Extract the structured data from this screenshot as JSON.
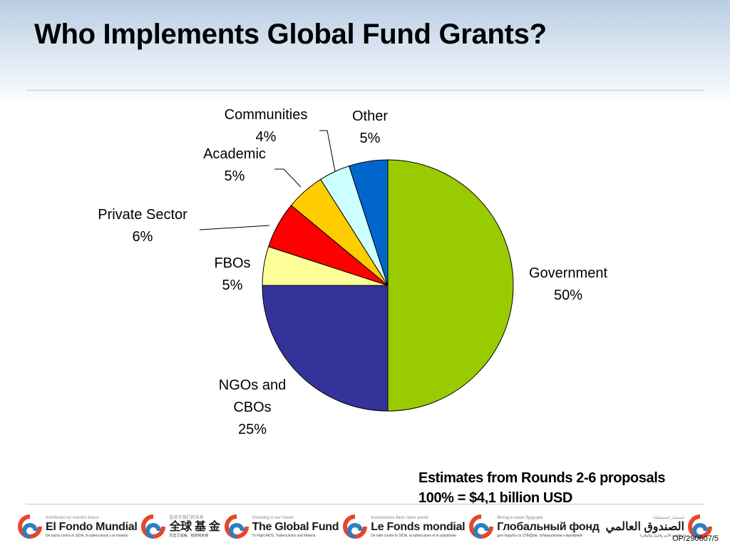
{
  "title": "Who Implements Global Fund Grants?",
  "chart_data": {
    "type": "pie",
    "slices": [
      {
        "label": "Government",
        "value": 50,
        "value_label": "50%",
        "color": "#99cc00"
      },
      {
        "label": "NGOs and CBOs",
        "label_lines": [
          "NGOs and",
          "CBOs"
        ],
        "value": 25,
        "value_label": "25%",
        "color": "#333399"
      },
      {
        "label": "FBOs",
        "value": 5,
        "value_label": "5%",
        "color": "#ffff99"
      },
      {
        "label": "Private Sector",
        "value": 6,
        "value_label": "6%",
        "color": "#ff0000"
      },
      {
        "label": "Academic",
        "value": 5,
        "value_label": "5%",
        "color": "#ffcc00"
      },
      {
        "label": "Communities",
        "value": 4,
        "value_label": "4%",
        "color": "#ccffff"
      },
      {
        "label": "Other",
        "value": 5,
        "value_label": "5%",
        "color": "#0066cc"
      }
    ],
    "legend": "none",
    "data_labels": "outside"
  },
  "note": {
    "line1": "Estimates from Rounds 2-6 proposals",
    "line2": "100% = $4,1 billion USD"
  },
  "footer": {
    "logos": [
      {
        "tagline": "Invirtiendo en nuestro futuro",
        "name": "El Fondo Mundial",
        "sub": "De lucha contra el SIDA, la tuberculosis y la malaria",
        "icon": "global-fund-logo-icon"
      },
      {
        "tagline": "投资于我们的未来",
        "name": "全球 基 金",
        "sub": "抗击艾滋病、结核和疟疾",
        "icon": "global-fund-logo-icon"
      },
      {
        "tagline": "Investing in our future",
        "name": "The Global Fund",
        "sub": "To Fight AIDS, Tuberculosis and Malaria",
        "icon": "global-fund-logo-icon"
      },
      {
        "tagline": "Investissons dans notre avenir",
        "name": "Le Fonds mondial",
        "sub": "De lutte contre le SIDA, la tuberculose et le paludisme",
        "icon": "global-fund-logo-icon"
      },
      {
        "tagline": "Вклад в наше будущее",
        "name": "Глобальный фонд",
        "sub": "для борьбы со СПИДом, туберкулезом и малярией",
        "icon": "global-fund-logo-icon"
      },
      {
        "tagline": "استثمار لمستقبلنا",
        "name": "الصندوق العالمي",
        "sub": "لمكافحة الأيدز والسل والملاريا",
        "icon": "global-fund-logo-icon"
      }
    ],
    "ref": "OP/290607/5"
  }
}
